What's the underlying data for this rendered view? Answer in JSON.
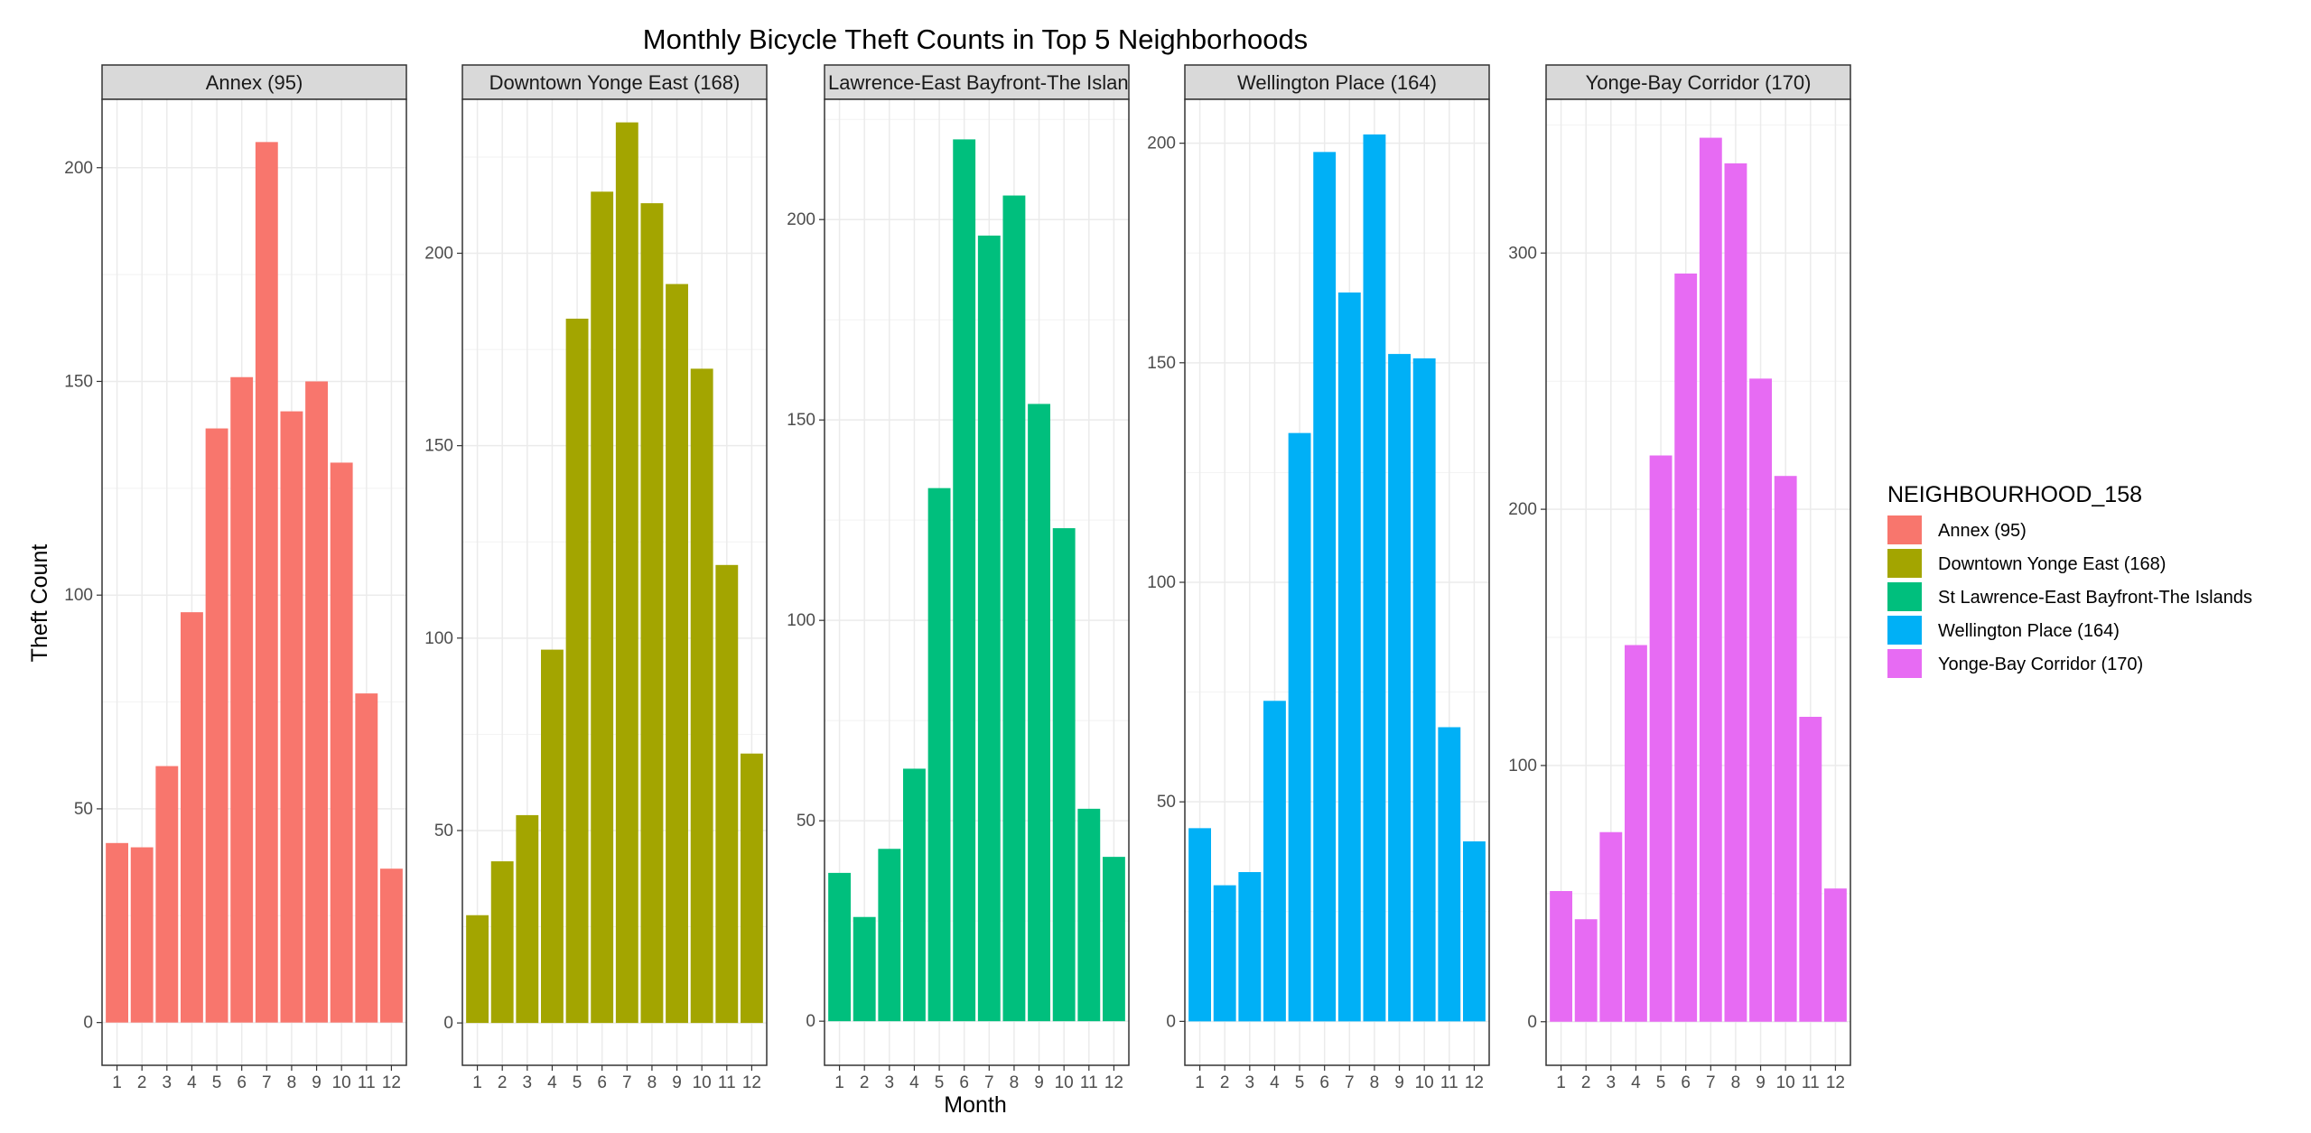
{
  "chart_data": {
    "type": "bar",
    "title": "Monthly Bicycle Theft Counts in Top 5 Neighborhoods",
    "xlabel": "Month",
    "ylabel": "Theft Count",
    "categories": [
      "1",
      "2",
      "3",
      "4",
      "5",
      "6",
      "7",
      "8",
      "9",
      "10",
      "11",
      "12"
    ],
    "grid": true,
    "legend_position": "right",
    "legend_title": "NEIGHBOURHOOD_158",
    "series": [
      {
        "name": "Annex (95)",
        "color": "#F8766D",
        "ylim": [
          -10,
          216
        ],
        "yticks": [
          0,
          50,
          100,
          150,
          200
        ],
        "values": [
          42,
          41,
          60,
          96,
          139,
          151,
          206,
          143,
          150,
          131,
          77,
          36
        ]
      },
      {
        "name": "Downtown Yonge East (168)",
        "color": "#A3A500",
        "ylim": [
          -11,
          240
        ],
        "yticks": [
          0,
          50,
          100,
          150,
          200
        ],
        "values": [
          28,
          42,
          54,
          97,
          183,
          216,
          234,
          213,
          192,
          170,
          119,
          70
        ]
      },
      {
        "name": "St Lawrence-East Bayfront-The Islands",
        "color": "#00BF7D",
        "ylim": [
          -11,
          230
        ],
        "yticks": [
          0,
          50,
          100,
          150,
          200
        ],
        "values": [
          37,
          26,
          43,
          63,
          133,
          220,
          196,
          206,
          154,
          123,
          53,
          41
        ]
      },
      {
        "name": "Wellington Place (164)",
        "color": "#00B0F6",
        "ylim": [
          -10,
          210
        ],
        "yticks": [
          0,
          50,
          100,
          150,
          200
        ],
        "values": [
          44,
          31,
          34,
          73,
          134,
          198,
          166,
          202,
          152,
          151,
          67,
          41
        ]
      },
      {
        "name": "Yonge-Bay Corridor (170)",
        "color": "#E76BF3",
        "ylim": [
          -17,
          360
        ],
        "yticks": [
          0,
          100,
          200,
          300
        ],
        "values": [
          51,
          40,
          74,
          147,
          221,
          292,
          345,
          335,
          251,
          213,
          119,
          52
        ]
      }
    ]
  }
}
